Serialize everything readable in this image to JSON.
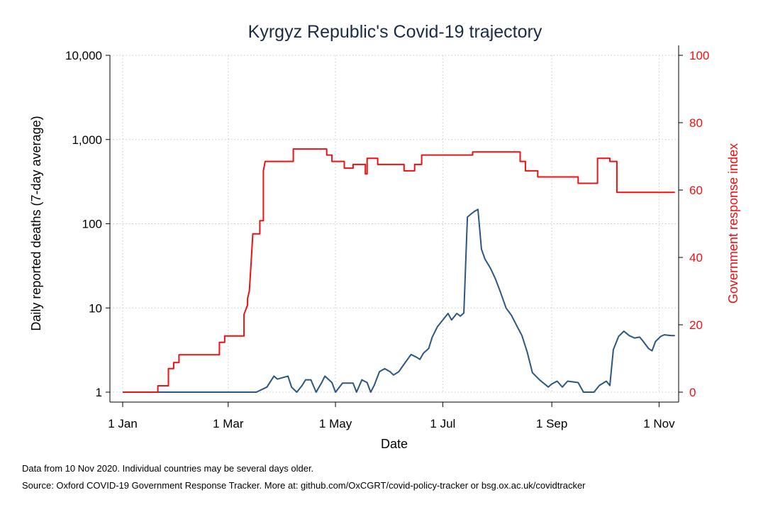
{
  "chart_data": {
    "type": "line",
    "title": "Kyrgyz Republic's Covid-19 trajectory",
    "xlabel": "Date",
    "ylabel_left": "Daily reported deaths (7-day average)",
    "ylabel_right": "Government response index",
    "x_ticks": [
      "1 Jan",
      "1 Mar",
      "1 May",
      "1 Jul",
      "1 Sep",
      "1 Nov"
    ],
    "y_left_ticks": [
      "1",
      "10",
      "100",
      "1,000",
      "10,000"
    ],
    "y_right_ticks": [
      "0",
      "20",
      "40",
      "60",
      "80",
      "100"
    ],
    "y_left_scale": "log",
    "y_left_range": [
      1,
      10000
    ],
    "y_right_range": [
      0,
      100
    ],
    "grid": true,
    "colors": {
      "deaths": "#2a5783",
      "response": "#ee1111",
      "right_axis": "#ee1111"
    },
    "series": [
      {
        "axis": "left",
        "points": [
          [
            "2020-01-01",
            1
          ],
          [
            "2020-03-17",
            1
          ],
          [
            "2020-03-23",
            1.15
          ],
          [
            "2020-03-27",
            1.55
          ],
          [
            "2020-03-29",
            1.43
          ],
          [
            "2020-04-04",
            1.55
          ],
          [
            "2020-04-06",
            1.15
          ],
          [
            "2020-04-09",
            1.0
          ],
          [
            "2020-04-12",
            1.2
          ],
          [
            "2020-04-14",
            1.4
          ],
          [
            "2020-04-17",
            1.4
          ],
          [
            "2020-04-20",
            1.0
          ],
          [
            "2020-04-23",
            1.28
          ],
          [
            "2020-04-25",
            1.55
          ],
          [
            "2020-04-29",
            1.3
          ],
          [
            "2020-05-01",
            1.0
          ],
          [
            "2020-05-05",
            1.28
          ],
          [
            "2020-05-11",
            1.28
          ],
          [
            "2020-05-13",
            1.0
          ],
          [
            "2020-05-16",
            1.4
          ],
          [
            "2020-05-19",
            1.3
          ],
          [
            "2020-05-21",
            1.0
          ],
          [
            "2020-05-23",
            1.2
          ],
          [
            "2020-05-26",
            1.75
          ],
          [
            "2020-05-29",
            1.9
          ],
          [
            "2020-06-01",
            1.75
          ],
          [
            "2020-06-03",
            1.6
          ],
          [
            "2020-06-06",
            1.75
          ],
          [
            "2020-06-10",
            2.3
          ],
          [
            "2020-06-13",
            2.8
          ],
          [
            "2020-06-16",
            2.6
          ],
          [
            "2020-06-18",
            2.45
          ],
          [
            "2020-06-20",
            2.9
          ],
          [
            "2020-06-23",
            3.3
          ],
          [
            "2020-06-25",
            4.5
          ],
          [
            "2020-06-28",
            6.0
          ],
          [
            "2020-07-01",
            7.2
          ],
          [
            "2020-07-04",
            8.6
          ],
          [
            "2020-07-06",
            7.2
          ],
          [
            "2020-07-09",
            8.6
          ],
          [
            "2020-07-11",
            8.0
          ],
          [
            "2020-07-13",
            8.7
          ],
          [
            "2020-07-15",
            120
          ],
          [
            "2020-07-17",
            130
          ],
          [
            "2020-07-19",
            140
          ],
          [
            "2020-07-21",
            148
          ],
          [
            "2020-07-23",
            50
          ],
          [
            "2020-07-25",
            38
          ],
          [
            "2020-07-28",
            30
          ],
          [
            "2020-07-31",
            22
          ],
          [
            "2020-08-03",
            15
          ],
          [
            "2020-08-06",
            10
          ],
          [
            "2020-08-09",
            8.2
          ],
          [
            "2020-08-12",
            6.2
          ],
          [
            "2020-08-15",
            4.7
          ],
          [
            "2020-08-18",
            3.0
          ],
          [
            "2020-08-21",
            1.7
          ],
          [
            "2020-08-25",
            1.4
          ],
          [
            "2020-08-30",
            1.15
          ],
          [
            "2020-09-01",
            1.25
          ],
          [
            "2020-09-04",
            1.35
          ],
          [
            "2020-09-07",
            1.15
          ],
          [
            "2020-09-10",
            1.35
          ],
          [
            "2020-09-16",
            1.3
          ],
          [
            "2020-09-19",
            1.0
          ],
          [
            "2020-09-25",
            1.0
          ],
          [
            "2020-09-28",
            1.2
          ],
          [
            "2020-10-02",
            1.35
          ],
          [
            "2020-10-04",
            1.2
          ],
          [
            "2020-10-06",
            3.2
          ],
          [
            "2020-10-09",
            4.6
          ],
          [
            "2020-10-12",
            5.3
          ],
          [
            "2020-10-15",
            4.7
          ],
          [
            "2020-10-18",
            4.4
          ],
          [
            "2020-10-21",
            4.5
          ],
          [
            "2020-10-23",
            4.0
          ],
          [
            "2020-10-26",
            3.3
          ],
          [
            "2020-10-28",
            3.1
          ],
          [
            "2020-10-30",
            4.0
          ],
          [
            "2020-11-02",
            4.6
          ],
          [
            "2020-11-04",
            4.8
          ],
          [
            "2020-11-08",
            4.7
          ],
          [
            "2020-11-10",
            4.7
          ]
        ]
      },
      {
        "axis": "right",
        "points": [
          [
            "2020-01-01",
            0
          ],
          [
            "2020-01-21",
            0
          ],
          [
            "2020-01-21",
            1.9
          ],
          [
            "2020-01-27",
            1.9
          ],
          [
            "2020-01-27",
            7.0
          ],
          [
            "2020-01-30",
            7.0
          ],
          [
            "2020-01-30",
            8.8
          ],
          [
            "2020-02-02",
            8.8
          ],
          [
            "2020-02-02",
            11.1
          ],
          [
            "2020-02-25",
            11.1
          ],
          [
            "2020-02-25",
            14.8
          ],
          [
            "2020-02-28",
            14.8
          ],
          [
            "2020-02-28",
            16.7
          ],
          [
            "2020-03-10",
            16.7
          ],
          [
            "2020-03-10",
            23.1
          ],
          [
            "2020-03-12",
            25.9
          ],
          [
            "2020-03-12",
            27.8
          ],
          [
            "2020-03-13",
            30.0
          ],
          [
            "2020-03-14",
            38.0
          ],
          [
            "2020-03-15",
            47.0
          ],
          [
            "2020-03-19",
            47.0
          ],
          [
            "2020-03-19",
            50.9
          ],
          [
            "2020-03-21",
            50.9
          ],
          [
            "2020-03-21",
            65.7
          ],
          [
            "2020-03-22",
            68.5
          ],
          [
            "2020-04-07",
            68.5
          ],
          [
            "2020-04-07",
            72.2
          ],
          [
            "2020-04-26",
            72.2
          ],
          [
            "2020-04-26",
            70.4
          ],
          [
            "2020-04-29",
            70.4
          ],
          [
            "2020-04-29",
            68.5
          ],
          [
            "2020-05-06",
            68.5
          ],
          [
            "2020-05-06",
            66.5
          ],
          [
            "2020-05-11",
            66.5
          ],
          [
            "2020-05-11",
            67.6
          ],
          [
            "2020-05-18",
            67.6
          ],
          [
            "2020-05-18",
            64.8
          ],
          [
            "2020-05-19",
            64.8
          ],
          [
            "2020-05-19",
            69.4
          ],
          [
            "2020-05-25",
            69.4
          ],
          [
            "2020-05-25",
            67.6
          ],
          [
            "2020-06-09",
            67.6
          ],
          [
            "2020-06-09",
            65.7
          ],
          [
            "2020-06-15",
            65.7
          ],
          [
            "2020-06-15",
            67.6
          ],
          [
            "2020-06-19",
            67.6
          ],
          [
            "2020-06-19",
            70.4
          ],
          [
            "2020-07-18",
            70.4
          ],
          [
            "2020-07-18",
            71.3
          ],
          [
            "2020-08-14",
            71.3
          ],
          [
            "2020-08-14",
            68.5
          ],
          [
            "2020-08-17",
            68.5
          ],
          [
            "2020-08-17",
            65.7
          ],
          [
            "2020-08-24",
            65.7
          ],
          [
            "2020-08-24",
            63.9
          ],
          [
            "2020-09-16",
            63.9
          ],
          [
            "2020-09-16",
            62.0
          ],
          [
            "2020-09-27",
            62.0
          ],
          [
            "2020-09-27",
            69.4
          ],
          [
            "2020-10-04",
            69.4
          ],
          [
            "2020-10-04",
            68.5
          ],
          [
            "2020-10-08",
            68.5
          ],
          [
            "2020-10-08",
            59.3
          ],
          [
            "2020-11-10",
            59.3
          ]
        ]
      }
    ]
  },
  "notes": {
    "line1": "Data from 10 Nov 2020. Individual countries may be several days older.",
    "line2": "Source: Oxford COVID-19 Government Response Tracker. More at: github.com/OxCGRT/covid-policy-tracker or bsg.ox.ac.uk/covidtracker"
  }
}
